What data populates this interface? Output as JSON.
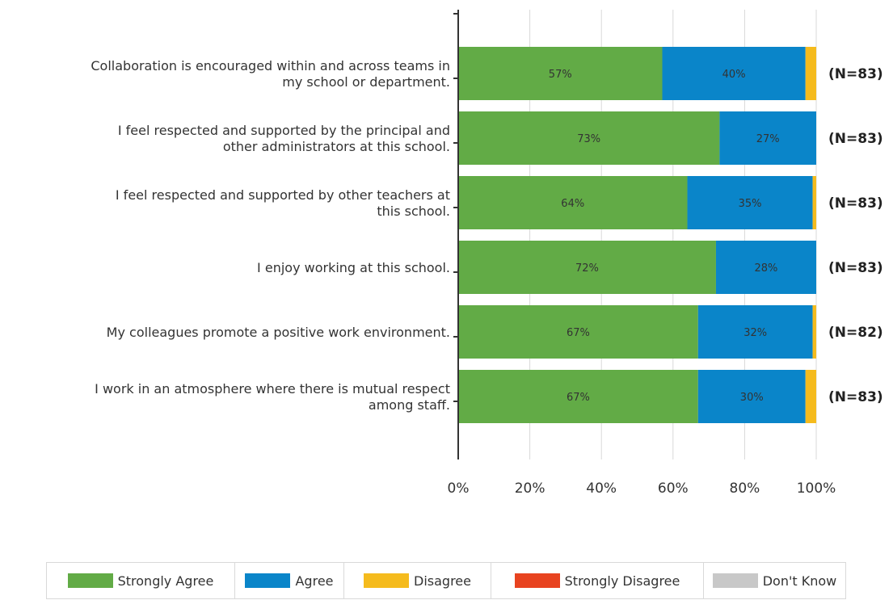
{
  "chart_data": {
    "type": "bar",
    "orientation": "horizontal",
    "stacked": true,
    "categories": [
      [
        "Collaboration is encouraged within and across teams in",
        "my school or department."
      ],
      [
        "I feel respected and supported by the principal and",
        "other administrators at this school."
      ],
      [
        "I feel respected and supported by other teachers at",
        "this school."
      ],
      [
        "I enjoy working at this school."
      ],
      [
        "My colleagues promote a positive work environment."
      ],
      [
        "I work in an atmosphere where there is mutual respect",
        "among staff."
      ]
    ],
    "series": [
      {
        "name": "Strongly Agree",
        "color": "#62ab46",
        "values": [
          57,
          73,
          64,
          72,
          67,
          67
        ],
        "labels": [
          "57%",
          "73%",
          "64%",
          "72%",
          "67%",
          "67%"
        ]
      },
      {
        "name": "Agree",
        "color": "#0a85c9",
        "values": [
          40,
          27,
          35,
          28,
          32,
          30
        ],
        "labels": [
          "40%",
          "27%",
          "35%",
          "28%",
          "32%",
          "30%"
        ]
      },
      {
        "name": "Disagree",
        "color": "#f5bb1d",
        "values": [
          3,
          0,
          1,
          0,
          1,
          3
        ],
        "labels": [
          "",
          "",
          "",
          "",
          "",
          ""
        ]
      },
      {
        "name": "Strongly Disagree",
        "color": "#e84320",
        "values": [
          0,
          0,
          0,
          0,
          0,
          0
        ],
        "labels": [
          "",
          "",
          "",
          "",
          "",
          ""
        ]
      },
      {
        "name": "Don't Know",
        "color": "#c8c8c8",
        "values": [
          0,
          0,
          0,
          0,
          0,
          0
        ],
        "labels": [
          "",
          "",
          "",
          "",
          "",
          ""
        ]
      }
    ],
    "n_labels": [
      "(N=83)",
      "(N=83)",
      "(N=83)",
      "(N=83)",
      "(N=82)",
      "(N=83)"
    ],
    "xlim": [
      0,
      100
    ],
    "xticks": [
      0,
      20,
      40,
      60,
      80,
      100
    ],
    "xtick_labels": [
      "0%",
      "20%",
      "40%",
      "60%",
      "80%",
      "100%"
    ],
    "grid": true,
    "legend_position": "bottom"
  }
}
